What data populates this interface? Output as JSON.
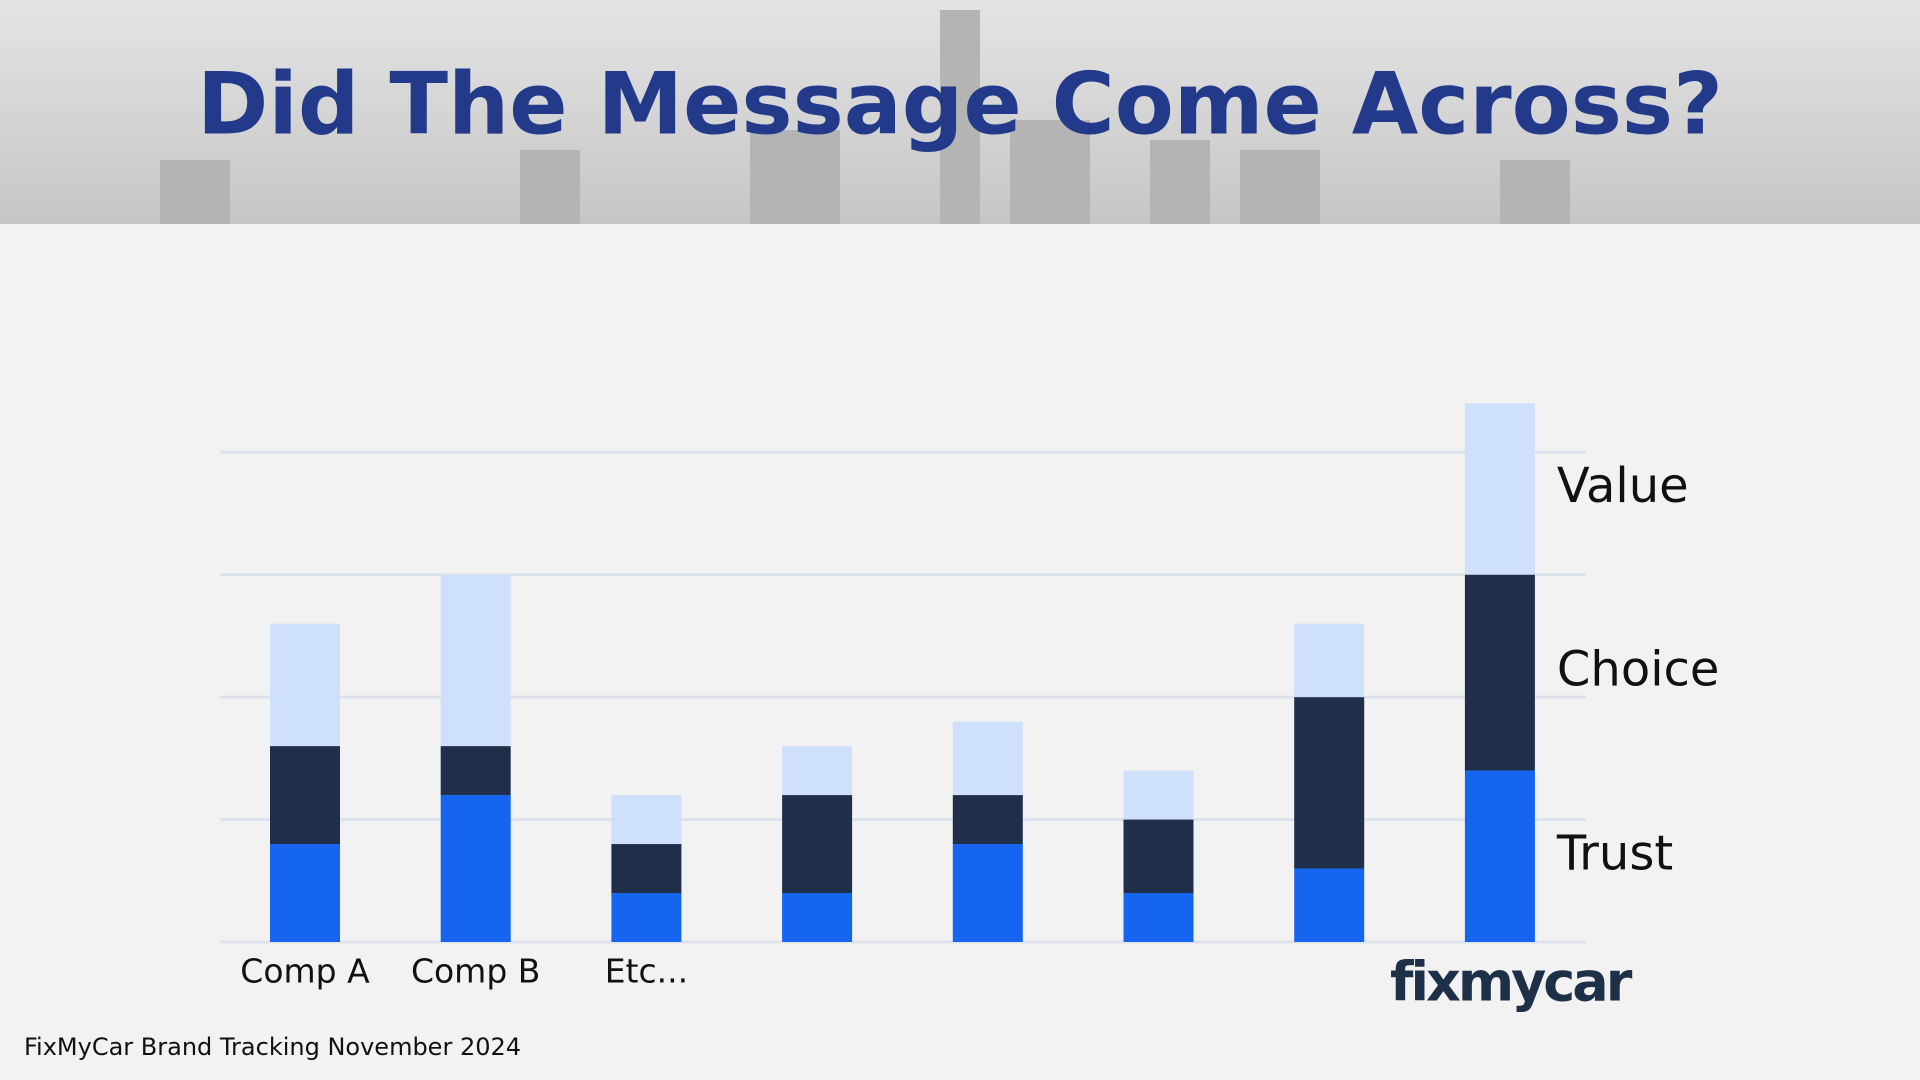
{
  "chart_data": {
    "type": "stacked-bar",
    "title": "Did The Message Come Across?",
    "categories": [
      "Comp A",
      "Comp B",
      "Etc...",
      null,
      null,
      null,
      null,
      null
    ],
    "series": [
      {
        "name": "Trust",
        "color": "#1565f0",
        "values": [
          0.8,
          1.2,
          0.4,
          0.4,
          0.8,
          0.4,
          0.6,
          1.4
        ]
      },
      {
        "name": "Choice",
        "color": "#1f2f4a",
        "values": [
          0.8,
          0.4,
          0.4,
          0.8,
          0.4,
          0.6,
          1.4,
          1.6
        ]
      },
      {
        "name": "Value",
        "color": "#cfe0fa",
        "values": [
          1.0,
          1.4,
          0.4,
          0.4,
          0.6,
          0.4,
          0.6,
          1.4
        ]
      }
    ],
    "ylim": [
      0,
      4.5
    ],
    "yticks": [
      0,
      1,
      2,
      3,
      4
    ],
    "grid": true,
    "legend": "right-of-last-bar"
  },
  "logo": "fixmycar",
  "footer": "FixMyCar Brand Tracking November 2024"
}
